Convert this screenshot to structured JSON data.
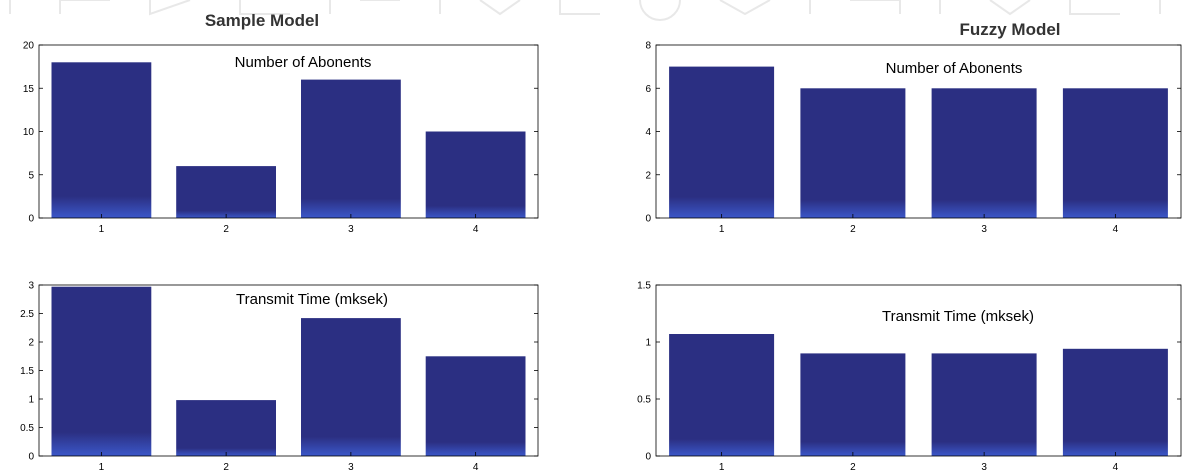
{
  "panel_titles": {
    "left": "Sample Model",
    "right": "Fuzzy Model"
  },
  "colors": {
    "bar": "#2b2f82",
    "bar_fade": "#3b57c9",
    "axis": "#000000",
    "background": "#ffffff"
  },
  "chart_data": [
    {
      "type": "bar",
      "title": "Sample Model",
      "annotation": "Number of Abonents",
      "categories": [
        "1",
        "2",
        "3",
        "4"
      ],
      "values": [
        18,
        6,
        16,
        10
      ],
      "ylim": [
        0,
        20
      ],
      "yticks": [
        "0",
        "5",
        "10",
        "15",
        "20"
      ],
      "xlabel": "",
      "ylabel": ""
    },
    {
      "type": "bar",
      "title": "Fuzzy Model",
      "annotation": "Number of Abonents",
      "categories": [
        "1",
        "2",
        "3",
        "4"
      ],
      "values": [
        7,
        6,
        6,
        6
      ],
      "ylim": [
        0,
        8
      ],
      "yticks": [
        "0",
        "2",
        "4",
        "6",
        "8"
      ],
      "xlabel": "",
      "ylabel": ""
    },
    {
      "type": "bar",
      "title": "",
      "annotation": "Transmit Time (mksek)",
      "categories": [
        "1",
        "2",
        "3",
        "4"
      ],
      "values": [
        2.97,
        0.98,
        2.42,
        1.75
      ],
      "ylim": [
        0,
        3
      ],
      "yticks": [
        "0",
        "0.5",
        "1",
        "1.5",
        "2",
        "2.5",
        "3"
      ],
      "xlabel": "",
      "ylabel": ""
    },
    {
      "type": "bar",
      "title": "",
      "annotation": "Transmit Time (mksek)",
      "categories": [
        "1",
        "2",
        "3",
        "4"
      ],
      "values": [
        1.07,
        0.9,
        0.9,
        0.94
      ],
      "ylim": [
        0,
        1.5
      ],
      "yticks": [
        "0",
        "0.5",
        "1",
        "1.5"
      ],
      "xlabel": "",
      "ylabel": ""
    }
  ]
}
